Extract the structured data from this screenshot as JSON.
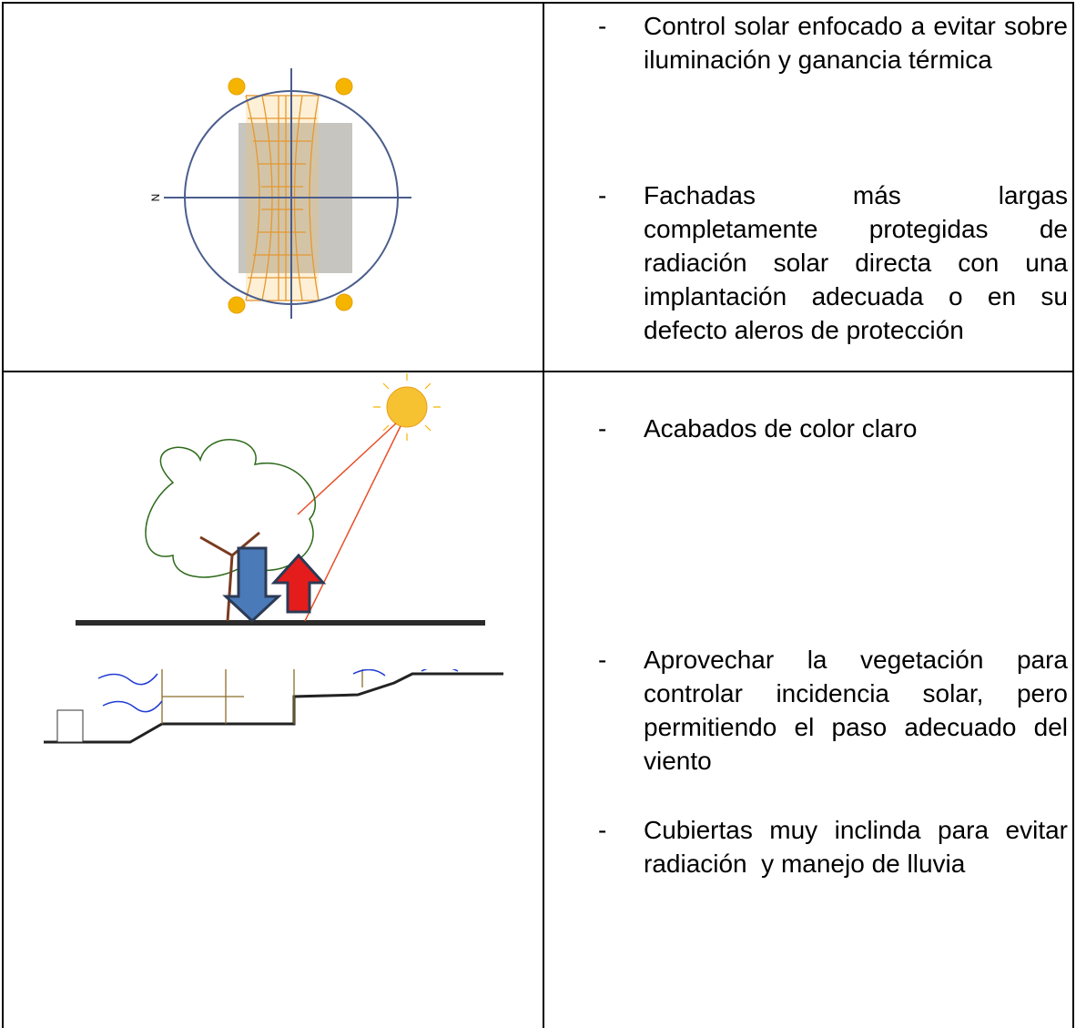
{
  "bullet": "-",
  "table": {
    "rows": [
      {
        "items": [
          "Control solar enfocado a evitar sobre iluminación y ganancia térmica",
          "Fachadas más largas completamente protegidas de radiación solar directa con una implantación adecuada o en su defecto aleros de protección"
        ]
      },
      {
        "items": [
          "Acabados de color claro",
          "Aprovechar la vegetación para controlar incidencia solar, pero permitiendo el paso adecuado del viento",
          "Cubiertas muy inclinda para evitar radiación  y manejo de lluvia"
        ]
      }
    ]
  },
  "compass_label": "N"
}
